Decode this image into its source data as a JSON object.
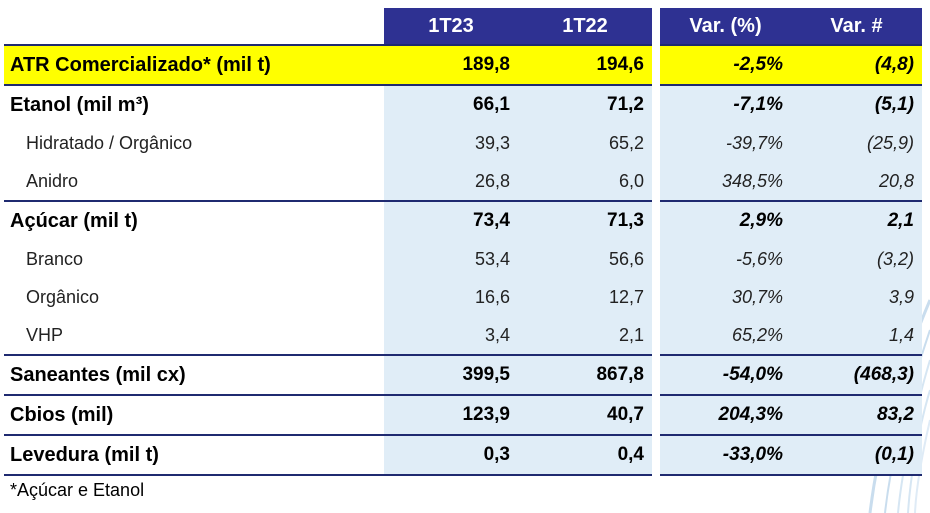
{
  "table": {
    "headers": [
      "1T23",
      "1T22",
      "Var. (%)",
      "Var. #"
    ],
    "rows": [
      {
        "label": "ATR Comercializado* (mil t)",
        "v1": "189,8",
        "v2": "194,6",
        "pct": "-2,5%",
        "abs": "(4,8)"
      },
      {
        "label": "Etanol (mil m³)",
        "v1": "66,1",
        "v2": "71,2",
        "pct": "-7,1%",
        "abs": "(5,1)"
      },
      {
        "label": "Hidratado / Orgânico",
        "v1": "39,3",
        "v2": "65,2",
        "pct": "-39,7%",
        "abs": "(25,9)"
      },
      {
        "label": "Anidro",
        "v1": "26,8",
        "v2": "6,0",
        "pct": "348,5%",
        "abs": "20,8"
      },
      {
        "label": "Açúcar (mil t)",
        "v1": "73,4",
        "v2": "71,3",
        "pct": "2,9%",
        "abs": "2,1"
      },
      {
        "label": "Branco",
        "v1": "53,4",
        "v2": "56,6",
        "pct": "-5,6%",
        "abs": "(3,2)"
      },
      {
        "label": "Orgânico",
        "v1": "16,6",
        "v2": "12,7",
        "pct": "30,7%",
        "abs": "3,9"
      },
      {
        "label": "VHP",
        "v1": "3,4",
        "v2": "2,1",
        "pct": "65,2%",
        "abs": "1,4"
      },
      {
        "label": "Saneantes (mil cx)",
        "v1": "399,5",
        "v2": "867,8",
        "pct": "-54,0%",
        "abs": "(468,3)"
      },
      {
        "label": "Cbios (mil)",
        "v1": "123,9",
        "v2": "40,7",
        "pct": "204,3%",
        "abs": "83,2"
      },
      {
        "label": "Levedura (mil t)",
        "v1": "0,3",
        "v2": "0,4",
        "pct": "-33,0%",
        "abs": "(0,1)"
      }
    ]
  },
  "footnote": "*Açúcar e Etanol",
  "colors": {
    "header_bg": "#2e3192",
    "highlight_row": "#ffff00",
    "cell_bg": "#e0edf7",
    "rule": "#1f2a70",
    "decoration": "#c9ddee"
  }
}
